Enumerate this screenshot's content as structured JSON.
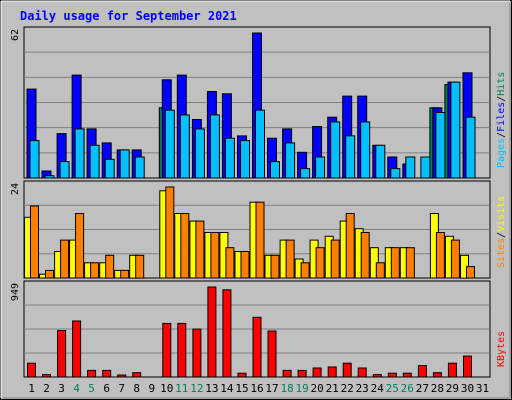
{
  "title": "Daily usage for September 2021",
  "chart_data": [
    {
      "type": "bar",
      "panel": "hits-files-pages",
      "title": "Daily usage for September 2021",
      "categories": [
        "1",
        "2",
        "3",
        "4",
        "5",
        "6",
        "7",
        "8",
        "9",
        "10",
        "11",
        "12",
        "13",
        "14",
        "15",
        "16",
        "17",
        "18",
        "19",
        "20",
        "21",
        "22",
        "23",
        "24",
        "25",
        "26",
        "27",
        "28",
        "29",
        "30",
        "31"
      ],
      "ymax": 62,
      "ymax_label": "62",
      "grid": true,
      "legend_words": [
        "Pages",
        "/",
        "Files",
        "/",
        "Hits"
      ],
      "series": [
        {
          "name": "Hits",
          "color": "#00805c",
          "values": [
            0,
            0,
            0,
            0,
            0,
            0,
            0,
            0,
            0,
            30,
            0,
            0,
            0,
            0,
            0,
            0,
            0,
            0,
            0,
            0,
            0,
            0,
            0,
            0,
            0,
            0,
            0,
            30,
            40,
            0,
            0
          ]
        },
        {
          "name": "Files",
          "color": "#0000ff",
          "values": [
            38,
            3,
            19,
            44,
            21,
            15,
            12,
            12,
            0,
            42,
            44,
            25,
            37,
            36,
            18,
            62,
            17,
            21,
            11,
            22,
            26,
            35,
            35,
            14,
            9,
            6,
            0,
            30,
            41,
            45,
            0
          ]
        },
        {
          "name": "Pages",
          "color": "#00c0ff",
          "values": [
            16,
            1,
            7,
            21,
            14,
            8,
            12,
            9,
            0,
            29,
            27,
            21,
            27,
            17,
            16,
            29,
            7,
            15,
            4,
            9,
            24,
            18,
            24,
            14,
            4,
            9,
            9,
            28,
            41,
            26,
            0
          ]
        }
      ]
    },
    {
      "type": "bar",
      "panel": "visits-sites",
      "categories": [
        "1",
        "2",
        "3",
        "4",
        "5",
        "6",
        "7",
        "8",
        "9",
        "10",
        "11",
        "12",
        "13",
        "14",
        "15",
        "16",
        "17",
        "18",
        "19",
        "20",
        "21",
        "22",
        "23",
        "24",
        "25",
        "26",
        "27",
        "28",
        "29",
        "30",
        "31"
      ],
      "ymax": 24,
      "ymax_label": "24",
      "grid": true,
      "legend_words": [
        "Sites",
        "/",
        "Visits"
      ],
      "series": [
        {
          "name": "Visits",
          "color": "#ffff00",
          "values": [
            16,
            1,
            7,
            10,
            4,
            4,
            2,
            6,
            0,
            23,
            17,
            15,
            12,
            12,
            7,
            20,
            6,
            10,
            5,
            10,
            11,
            15,
            13,
            8,
            8,
            8,
            0,
            17,
            11,
            6,
            0
          ]
        },
        {
          "name": "Sites",
          "color": "#ff8000",
          "values": [
            19,
            2,
            10,
            17,
            4,
            6,
            2,
            6,
            0,
            24,
            17,
            15,
            12,
            8,
            7,
            20,
            6,
            10,
            4,
            8,
            10,
            17,
            12,
            4,
            8,
            8,
            0,
            12,
            10,
            3,
            0
          ]
        }
      ]
    },
    {
      "type": "bar",
      "panel": "kbytes",
      "categories": [
        "1",
        "2",
        "3",
        "4",
        "5",
        "6",
        "7",
        "8",
        "9",
        "10",
        "11",
        "12",
        "13",
        "14",
        "15",
        "16",
        "17",
        "18",
        "19",
        "20",
        "21",
        "22",
        "23",
        "24",
        "25",
        "26",
        "27",
        "28",
        "29",
        "30",
        "31"
      ],
      "ymax": 949,
      "ymax_label": "949",
      "grid": true,
      "legend_words": [
        "KBytes"
      ],
      "series": [
        {
          "name": "KBytes",
          "color": "#ff0000",
          "values": [
            145,
            25,
            490,
            590,
            70,
            70,
            15,
            45,
            0,
            565,
            565,
            505,
            949,
            920,
            40,
            630,
            485,
            70,
            70,
            95,
            105,
            145,
            95,
            25,
            40,
            40,
            120,
            45,
            145,
            220,
            0
          ]
        }
      ]
    }
  ],
  "x_axis": {
    "labels": [
      "1",
      "2",
      "3",
      "4",
      "5",
      "6",
      "7",
      "8",
      "9",
      "10",
      "11",
      "12",
      "13",
      "14",
      "15",
      "16",
      "17",
      "18",
      "19",
      "20",
      "21",
      "22",
      "23",
      "24",
      "25",
      "26",
      "27",
      "28",
      "29",
      "30",
      "31"
    ],
    "weekend_days": [
      "4",
      "5",
      "11",
      "12",
      "18",
      "19",
      "25",
      "26"
    ],
    "weekday_color": "#000000",
    "weekend_color": "#00805c"
  },
  "colors": {
    "background": "#c0c0c0",
    "frame": "#ffffff",
    "title": "#0000ff",
    "grid": "#808080",
    "hits": "#00805c",
    "files": "#0000ff",
    "pages": "#00c0ff",
    "visits": "#ffff00",
    "sites": "#ff8000",
    "kbytes": "#ff0000",
    "divider": "#000000"
  }
}
